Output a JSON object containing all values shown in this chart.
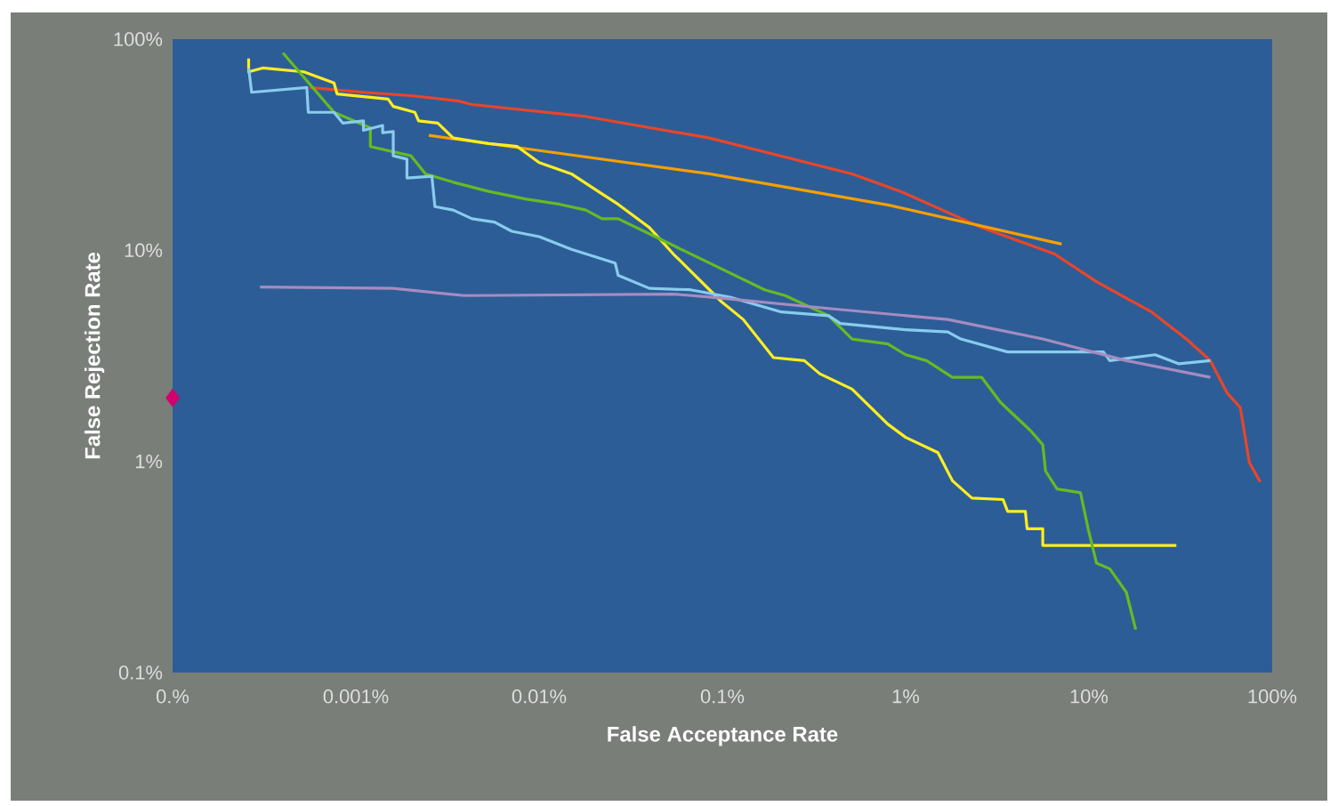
{
  "chart_data": {
    "type": "line",
    "xlabel": "False Acceptance Rate",
    "ylabel": "False Rejection Rate",
    "log": "xy",
    "xlim": [
      0.0001,
      100
    ],
    "ylim": [
      0.1,
      100
    ],
    "xticks": [
      {
        "value": 0.0001,
        "label": "0.%"
      },
      {
        "value": 0.001,
        "label": "0.001%"
      },
      {
        "value": 0.01,
        "label": "0.01%"
      },
      {
        "value": 0.1,
        "label": "0.1%"
      },
      {
        "value": 1,
        "label": "1%"
      },
      {
        "value": 10,
        "label": "10%"
      },
      {
        "value": 100,
        "label": "100%"
      }
    ],
    "yticks": [
      {
        "value": 0.1,
        "label": "0.1%"
      },
      {
        "value": 1,
        "label": "1%"
      },
      {
        "value": 10,
        "label": "10%"
      },
      {
        "value": 100,
        "label": "100%"
      }
    ],
    "marker": "none",
    "line_style": "solid",
    "series": [
      {
        "color": "#e8462a",
        "x": [
          0.00056,
          0.0011,
          0.002,
          0.0036,
          0.0043,
          0.018,
          0.085,
          0.51,
          0.94,
          2.6,
          6.5,
          11,
          22,
          34,
          46,
          57,
          67,
          75,
          86
        ],
        "values": [
          59,
          56,
          54,
          51,
          49,
          43,
          34,
          23,
          19,
          12.8,
          9.6,
          7.1,
          5.1,
          3.8,
          3.0,
          2.1,
          1.8,
          0.99,
          0.8
        ]
      },
      {
        "color": "#f5a000",
        "x": [
          0.0025,
          0.085,
          0.8,
          7.1
        ],
        "values": [
          35,
          23,
          16.4,
          10.7
        ]
      },
      {
        "color": "#ffee22",
        "x": [
          0.00026,
          0.00026,
          0.00031,
          0.00037,
          0.00052,
          0.00076,
          0.00079,
          0.0015,
          0.0016,
          0.0021,
          0.0022,
          0.0028,
          0.0034,
          0.0053,
          0.0076,
          0.01,
          0.015,
          0.021,
          0.027,
          0.04,
          0.054,
          0.099,
          0.13,
          0.19,
          0.28,
          0.34,
          0.51,
          0.8,
          1.0,
          1.5,
          1.8,
          2.3,
          3.4,
          3.6,
          4.5,
          4.6,
          5.6,
          5.6,
          30
        ],
        "values": [
          81,
          70,
          73,
          72,
          70,
          62,
          55,
          52,
          48,
          45,
          41,
          40,
          34,
          32,
          31,
          26,
          23,
          19,
          16.5,
          12.8,
          9.6,
          5.7,
          4.7,
          3.1,
          3.0,
          2.6,
          2.2,
          1.5,
          1.3,
          1.1,
          0.81,
          0.67,
          0.66,
          0.58,
          0.58,
          0.48,
          0.48,
          0.4,
          0.4
        ]
      },
      {
        "color": "#66bb22",
        "x": [
          0.0004,
          0.00076,
          0.0012,
          0.0012,
          0.002,
          0.0024,
          0.0034,
          0.0053,
          0.0084,
          0.013,
          0.018,
          0.022,
          0.027,
          0.043,
          0.085,
          0.17,
          0.22,
          0.38,
          0.51,
          0.8,
          1.0,
          1.3,
          1.8,
          2.6,
          3.3,
          4.8,
          5.6,
          5.8,
          6.7,
          9.0,
          9.9,
          11,
          13,
          16,
          18
        ],
        "values": [
          86,
          45,
          38,
          31,
          28,
          23,
          21,
          19,
          17.5,
          16.5,
          15.5,
          14.1,
          14.1,
          11.6,
          8.7,
          6.5,
          6.1,
          4.9,
          3.8,
          3.6,
          3.2,
          3.0,
          2.5,
          2.5,
          1.9,
          1.4,
          1.2,
          0.9,
          0.74,
          0.71,
          0.48,
          0.33,
          0.31,
          0.24,
          0.16
        ]
      },
      {
        "color": "#88ccee",
        "x": [
          0.00026,
          0.00027,
          0.00054,
          0.00055,
          0.00076,
          0.00085,
          0.0011,
          0.0011,
          0.0014,
          0.0014,
          0.0016,
          0.0016,
          0.0019,
          0.0019,
          0.0026,
          0.0027,
          0.0034,
          0.0043,
          0.0057,
          0.0071,
          0.01,
          0.015,
          0.026,
          0.027,
          0.04,
          0.067,
          0.11,
          0.21,
          0.38,
          0.44,
          1.0,
          1.7,
          2.0,
          3.6,
          12,
          13,
          23,
          31,
          46
        ],
        "values": [
          73,
          56,
          59,
          45,
          45,
          40,
          41,
          37,
          39,
          36,
          36.5,
          28,
          27,
          22,
          22.4,
          16.1,
          15.5,
          14.1,
          13.6,
          12.3,
          11.6,
          10.1,
          8.7,
          7.6,
          6.6,
          6.5,
          6.0,
          5.1,
          4.9,
          4.5,
          4.2,
          4.1,
          3.8,
          3.3,
          3.3,
          3.0,
          3.2,
          2.9,
          3.0
        ]
      },
      {
        "color": "#a58cc0",
        "x": [
          0.0003,
          0.0016,
          0.0039,
          0.054,
          0.085,
          0.38,
          1.7,
          5.6,
          16,
          46
        ],
        "values": [
          6.7,
          6.6,
          6.1,
          6.2,
          6.0,
          5.3,
          4.7,
          3.8,
          3.0,
          2.5
        ]
      },
      {
        "type": "scatter",
        "marker": "diamond",
        "color": "#d4006e",
        "x": [
          0.0001
        ],
        "values": [
          2
        ]
      }
    ]
  }
}
